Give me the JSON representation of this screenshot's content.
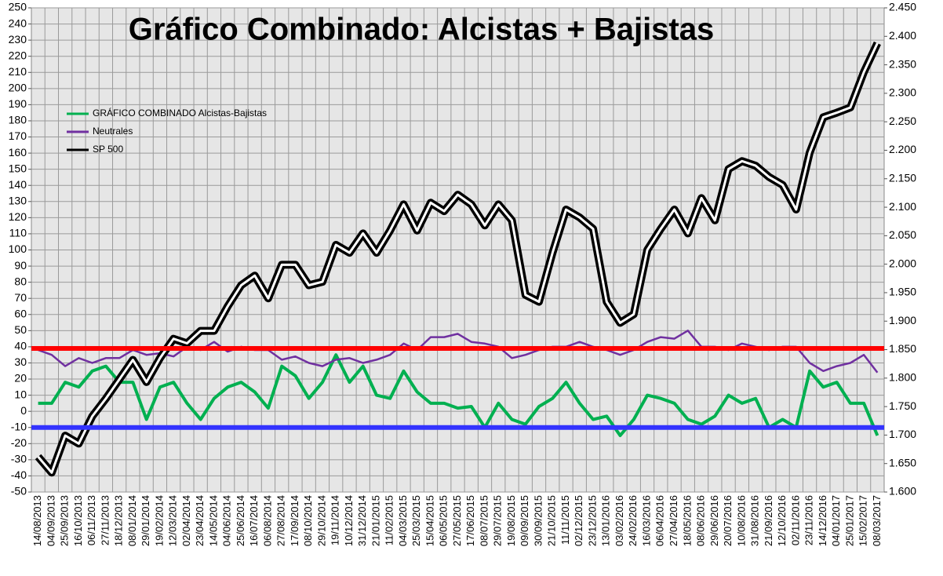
{
  "chart_data": {
    "type": "line",
    "title": "Gráfico Combinado: Alcistas + Bajistas",
    "categories": [
      "14/08/2013",
      "04/09/2013",
      "25/09/2013",
      "16/10/2013",
      "06/11/2013",
      "27/11/2013",
      "18/12/2013",
      "08/01/2014",
      "29/01/2014",
      "19/02/2014",
      "12/03/2014",
      "02/04/2014",
      "23/04/2014",
      "14/05/2014",
      "04/06/2014",
      "25/06/2014",
      "16/07/2014",
      "06/08/2014",
      "27/08/2014",
      "17/09/2014",
      "08/10/2014",
      "29/10/2014",
      "19/11/2014",
      "10/12/2014",
      "31/12/2014",
      "21/01/2015",
      "11/02/2015",
      "04/03/2015",
      "25/03/2015",
      "15/04/2015",
      "06/05/2015",
      "27/05/2015",
      "17/06/2015",
      "08/07/2015",
      "29/07/2015",
      "19/08/2015",
      "09/09/2015",
      "30/09/2015",
      "21/10/2015",
      "11/11/2015",
      "02/12/2015",
      "23/12/2015",
      "13/01/2016",
      "03/02/2016",
      "24/02/2016",
      "16/03/2016",
      "06/04/2016",
      "27/04/2016",
      "18/05/2016",
      "08/06/2016",
      "29/06/2016",
      "20/07/2016",
      "10/08/2016",
      "31/08/2016",
      "21/09/2016",
      "12/10/2016",
      "02/11/2016",
      "23/11/2016",
      "14/12/2016",
      "04/01/2017",
      "25/01/2017",
      "15/02/2017",
      "08/03/2017"
    ],
    "series": [
      {
        "name": "GRÁFICO COMBINADO Alcistas-Bajistas",
        "color": "#00b050",
        "values": [
          5,
          5,
          18,
          15,
          25,
          28,
          18,
          18,
          -5,
          15,
          18,
          5,
          -5,
          8,
          15,
          18,
          12,
          2,
          28,
          22,
          8,
          18,
          35,
          18,
          28,
          10,
          8,
          25,
          12,
          5,
          5,
          2,
          3,
          -10,
          5,
          -5,
          -8,
          3,
          8,
          18,
          5,
          -5,
          -3,
          -15,
          -5,
          10,
          8,
          5,
          -5,
          -8,
          -3,
          10,
          5,
          8,
          -10,
          -5,
          -10,
          25,
          15,
          18,
          5,
          5,
          -15
        ]
      },
      {
        "name": "Neutrales",
        "color": "#7030a0",
        "values": [
          38,
          35,
          28,
          33,
          30,
          33,
          33,
          38,
          35,
          36,
          34,
          40,
          38,
          43,
          37,
          40,
          38,
          38,
          32,
          34,
          30,
          28,
          32,
          33,
          30,
          32,
          35,
          42,
          38,
          46,
          46,
          48,
          43,
          42,
          40,
          33,
          35,
          38,
          40,
          40,
          43,
          40,
          38,
          35,
          38,
          43,
          46,
          45,
          50,
          40,
          40,
          38,
          42,
          40,
          38,
          40,
          40,
          30,
          25,
          28,
          30,
          35,
          24
        ]
      },
      {
        "name": "SP 500",
        "color": "#000000",
        "axis": "y2",
        "values": [
          1662,
          1634,
          1699,
          1685,
          1733,
          1764,
          1798,
          1832,
          1793,
          1835,
          1869,
          1861,
          1883,
          1883,
          1926,
          1963,
          1980,
          1940,
          1999,
          1999,
          1963,
          1969,
          2034,
          2020,
          2054,
          2020,
          2059,
          2105,
          2059,
          2108,
          2093,
          2122,
          2105,
          2068,
          2105,
          2077,
          1946,
          1934,
          2020,
          2096,
          2082,
          2062,
          1934,
          1897,
          1912,
          2025,
          2062,
          2096,
          2054,
          2116,
          2077,
          2167,
          2181,
          2173,
          2153,
          2139,
          2096,
          2196,
          2258,
          2266,
          2275,
          2337,
          2388
        ]
      }
    ],
    "reference_lines": [
      {
        "value": 39,
        "color": "#ff0000"
      },
      {
        "value": -10,
        "color": "#3333ff"
      }
    ],
    "ylim": [
      -50,
      250
    ],
    "yticks": [
      -50,
      -40,
      -30,
      -20,
      -10,
      0,
      10,
      20,
      30,
      40,
      50,
      60,
      70,
      80,
      90,
      100,
      110,
      120,
      130,
      140,
      150,
      160,
      170,
      180,
      190,
      200,
      210,
      220,
      230,
      240,
      250
    ],
    "y2lim": [
      1600,
      2450
    ],
    "y2ticks": [
      {
        "value": 1600,
        "label": "1.600"
      },
      {
        "value": 1650,
        "label": "1.650"
      },
      {
        "value": 1700,
        "label": "1.700"
      },
      {
        "value": 1750,
        "label": "1.750"
      },
      {
        "value": 1800,
        "label": "1.800"
      },
      {
        "value": 1850,
        "label": "1.850"
      },
      {
        "value": 1900,
        "label": "1.900"
      },
      {
        "value": 1950,
        "label": "1.950"
      },
      {
        "value": 2000,
        "label": "2.000"
      },
      {
        "value": 2050,
        "label": "2.050"
      },
      {
        "value": 2100,
        "label": "2.100"
      },
      {
        "value": 2150,
        "label": "2.150"
      },
      {
        "value": 2200,
        "label": "2.200"
      },
      {
        "value": 2250,
        "label": "2.250"
      },
      {
        "value": 2300,
        "label": "2.300"
      },
      {
        "value": 2350,
        "label": "2.350"
      },
      {
        "value": 2400,
        "label": "2.400"
      },
      {
        "value": 2450,
        "label": "2.450"
      }
    ],
    "grid": true,
    "legend": "upper left"
  }
}
